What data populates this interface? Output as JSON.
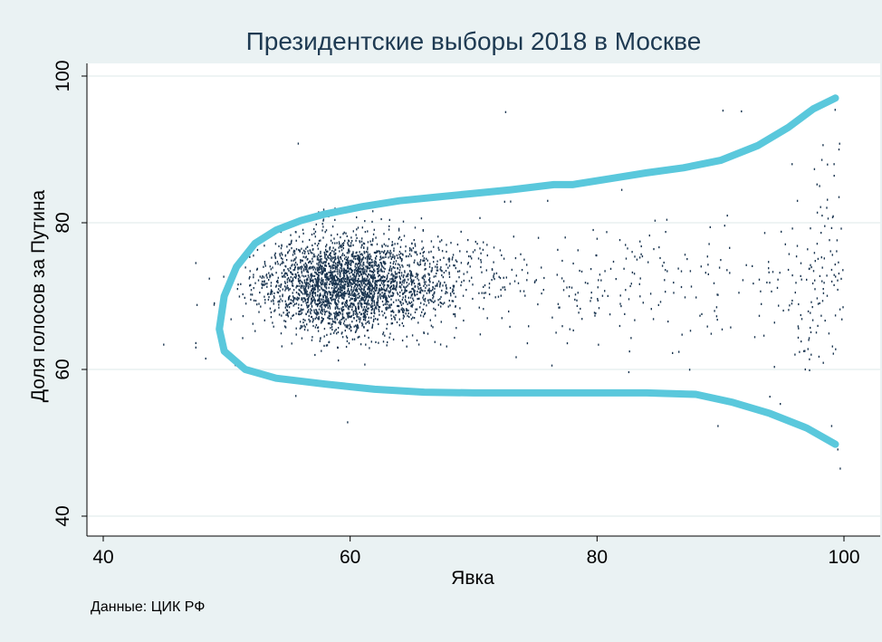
{
  "chart_data": {
    "type": "scatter",
    "title": "Президентские выборы 2018 в Москве",
    "xlabel": "Явка",
    "ylabel": "Доля голосов за Путина",
    "note": "Данные: ЦИК РФ",
    "xlim": [
      40,
      100
    ],
    "ylim": [
      40,
      100
    ],
    "xticks": [
      "40",
      "60",
      "80",
      "100"
    ],
    "yticks": [
      "40",
      "60",
      "80",
      "100"
    ],
    "grid": "horizontal",
    "colors": {
      "background": "#eaf2f3",
      "plot_area": "#ffffff",
      "points": "#1a3550",
      "outline": "#5ac8dc",
      "title": "#1e3a52"
    },
    "outline": [
      [
        99.3,
        97.0
      ],
      [
        97.5,
        95.5
      ],
      [
        95.5,
        93.0
      ],
      [
        93.0,
        90.5
      ],
      [
        90.0,
        88.5
      ],
      [
        87.0,
        87.5
      ],
      [
        84.0,
        86.8
      ],
      [
        81.0,
        86.0
      ],
      [
        78.0,
        85.2
      ],
      [
        76.5,
        85.2
      ],
      [
        73.0,
        84.5
      ],
      [
        70.0,
        84.0
      ],
      [
        67.0,
        83.5
      ],
      [
        64.0,
        83.0
      ],
      [
        61.0,
        82.2
      ],
      [
        58.0,
        81.2
      ],
      [
        56.0,
        80.3
      ],
      [
        54.0,
        79.0
      ],
      [
        52.3,
        77.2
      ],
      [
        50.8,
        74.0
      ],
      [
        49.8,
        70.0
      ],
      [
        49.4,
        65.5
      ],
      [
        49.8,
        62.5
      ],
      [
        51.5,
        60.0
      ],
      [
        54.0,
        58.8
      ],
      [
        58.0,
        58.0
      ],
      [
        62.0,
        57.3
      ],
      [
        66.0,
        56.9
      ],
      [
        70.0,
        56.8
      ],
      [
        75.0,
        56.8
      ],
      [
        80.0,
        56.8
      ],
      [
        84.0,
        56.8
      ],
      [
        88.0,
        56.6
      ],
      [
        91.0,
        55.5
      ],
      [
        94.0,
        54.0
      ],
      [
        97.0,
        52.0
      ],
      [
        99.3,
        49.8
      ]
    ],
    "series": [
      {
        "clusters": [
          {
            "cx": 59.5,
            "cy": 71.5,
            "sx": 3.2,
            "sy": 3.3,
            "n": 2600
          },
          {
            "cx": 66.5,
            "cy": 72.0,
            "sx": 3.5,
            "sy": 3.0,
            "n": 350
          },
          {
            "cx": 84.0,
            "cy": 71.5,
            "sx": 9.0,
            "sy": 5.0,
            "n": 260
          },
          {
            "cx": 98.0,
            "cy": 73.0,
            "sx": 1.6,
            "sy": 8.0,
            "n": 120
          }
        ],
        "points": [
          [
            44.9,
            63.4
          ],
          [
            47.5,
            63.6
          ],
          [
            47.5,
            63.0
          ],
          [
            48.3,
            61.5
          ],
          [
            48.6,
            72.4
          ],
          [
            47.6,
            68.8
          ],
          [
            50.7,
            60.6
          ],
          [
            55.8,
            90.8
          ],
          [
            55.6,
            56.4
          ],
          [
            59.8,
            52.8
          ],
          [
            72.6,
            95.1
          ],
          [
            90.2,
            95.3
          ],
          [
            91.7,
            95.2
          ],
          [
            94.0,
            56.3
          ],
          [
            89.8,
            52.3
          ],
          [
            99.0,
            52.3
          ],
          [
            99.7,
            46.5
          ],
          [
            99.5,
            49.1
          ],
          [
            99.2,
            88.0
          ],
          [
            99.6,
            90.0
          ],
          [
            99.6,
            83.5
          ],
          [
            82.0,
            84.5
          ],
          [
            95.8,
            88.0
          ],
          [
            73.0,
            82.9
          ],
          [
            76.0,
            83.0
          ]
        ]
      }
    ]
  }
}
